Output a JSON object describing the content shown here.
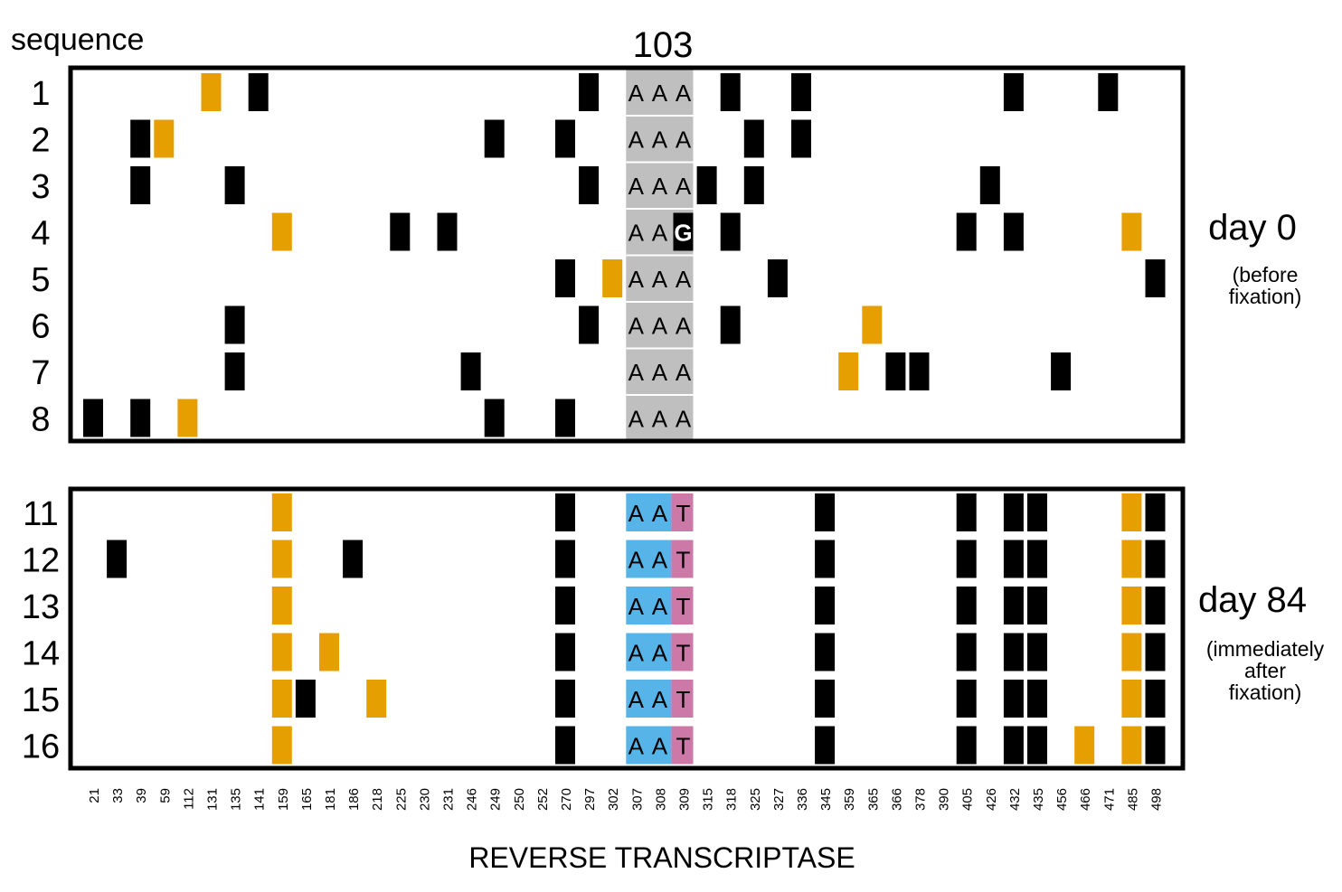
{
  "header": {
    "sequence_label": "sequence",
    "codon_label": "103",
    "axis_title": "REVERSE TRANSCRIPTASE"
  },
  "panels": [
    {
      "id": "day0",
      "title": "day 0",
      "subtitle": [
        "(before",
        "fixation)"
      ],
      "rows": [
        {
          "label": "1",
          "codon": [
            "A",
            "A",
            "A"
          ],
          "black": [
            "141",
            "297",
            "318",
            "336",
            "432",
            "471"
          ],
          "orange": [
            "131"
          ]
        },
        {
          "label": "2",
          "codon": [
            "A",
            "A",
            "A"
          ],
          "black": [
            "39",
            "249",
            "270",
            "325",
            "336"
          ],
          "orange": [
            "59"
          ]
        },
        {
          "label": "3",
          "codon": [
            "A",
            "A",
            "A"
          ],
          "black": [
            "39",
            "135",
            "297",
            "315",
            "325",
            "426"
          ],
          "orange": []
        },
        {
          "label": "4",
          "codon": [
            "A",
            "A",
            "G"
          ],
          "black": [
            "225",
            "231",
            "318",
            "405",
            "432"
          ],
          "orange": [
            "159",
            "485"
          ]
        },
        {
          "label": "5",
          "codon": [
            "A",
            "A",
            "A"
          ],
          "black": [
            "270",
            "327",
            "498"
          ],
          "orange": [
            "302"
          ]
        },
        {
          "label": "6",
          "codon": [
            "A",
            "A",
            "A"
          ],
          "black": [
            "135",
            "297",
            "318"
          ],
          "orange": [
            "365"
          ]
        },
        {
          "label": "7",
          "codon": [
            "A",
            "A",
            "A"
          ],
          "black": [
            "135",
            "246",
            "366",
            "378",
            "456"
          ],
          "orange": [
            "359"
          ]
        },
        {
          "label": "8",
          "codon": [
            "A",
            "A",
            "A"
          ],
          "black": [
            "21",
            "39",
            "249",
            "270"
          ],
          "orange": [
            "112"
          ]
        }
      ]
    },
    {
      "id": "day84",
      "title": "day 84",
      "subtitle": [
        "(immediately",
        "after",
        "fixation)"
      ],
      "rows": [
        {
          "label": "11",
          "codon": [
            "A",
            "A",
            "T"
          ],
          "black": [
            "270",
            "345",
            "405",
            "432",
            "435",
            "498"
          ],
          "orange": [
            "159",
            "485"
          ]
        },
        {
          "label": "12",
          "codon": [
            "A",
            "A",
            "T"
          ],
          "black": [
            "33",
            "186",
            "270",
            "345",
            "405",
            "432",
            "435",
            "498"
          ],
          "orange": [
            "159",
            "485"
          ]
        },
        {
          "label": "13",
          "codon": [
            "A",
            "A",
            "T"
          ],
          "black": [
            "270",
            "345",
            "405",
            "432",
            "435",
            "498"
          ],
          "orange": [
            "159",
            "485"
          ]
        },
        {
          "label": "14",
          "codon": [
            "A",
            "A",
            "T"
          ],
          "black": [
            "270",
            "345",
            "405",
            "432",
            "435",
            "498"
          ],
          "orange": [
            "159",
            "181",
            "485"
          ]
        },
        {
          "label": "15",
          "codon": [
            "A",
            "A",
            "T"
          ],
          "black": [
            "165",
            "270",
            "345",
            "405",
            "432",
            "435",
            "498"
          ],
          "orange": [
            "159",
            "218",
            "485"
          ]
        },
        {
          "label": "16",
          "codon": [
            "A",
            "A",
            "T"
          ],
          "black": [
            "270",
            "345",
            "405",
            "432",
            "435",
            "498"
          ],
          "orange": [
            "159",
            "466",
            "485"
          ]
        }
      ]
    }
  ],
  "positions": [
    "21",
    "33",
    "39",
    "59",
    "112",
    "131",
    "135",
    "141",
    "159",
    "165",
    "181",
    "186",
    "218",
    "225",
    "230",
    "231",
    "246",
    "249",
    "250",
    "252",
    "270",
    "297",
    "302",
    "307",
    "308",
    "309",
    "315",
    "318",
    "325",
    "327",
    "336",
    "345",
    "359",
    "365",
    "366",
    "378",
    "390",
    "405",
    "426",
    "432",
    "435",
    "456",
    "466",
    "471",
    "485",
    "498"
  ],
  "colors": {
    "black_mark": "#000000",
    "orange_mark": "#e69f00",
    "codon_grey": "#bfbfbf",
    "codon_blue": "#56b4e9",
    "codon_pink": "#cc79a7",
    "frame": "#000000"
  }
}
